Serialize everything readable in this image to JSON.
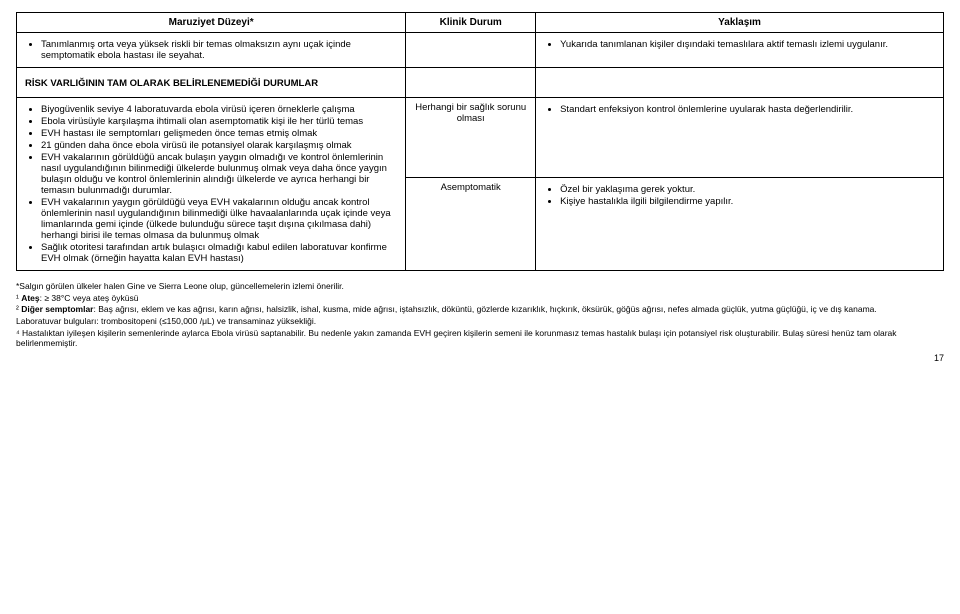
{
  "headers": {
    "c1": "Maruziyet Düzeyi*",
    "c2": "Klinik Durum",
    "c3": "Yaklaşım"
  },
  "row1": {
    "left": "Tanımlanmış orta veya yüksek riskli bir temas olmaksızın aynı uçak içinde  semptomatik ebola hastası ile seyahat.",
    "right": "Yukarıda tanımlanan kişiler dışındaki temaslılara aktif temaslı izlemi uygulanır."
  },
  "section_title": "RİSK VARLIĞININ TAM OLARAK BELİRLENEMEDİĞİ DURUMLAR",
  "bullets1": [
    "Biyogüvenlik seviye 4 laboratuvarda ebola virüsü içeren örneklerle çalışma",
    "Ebola virüsüyle karşılaşma ihtimali olan asemptomatik kişi ile her türlü temas",
    "EVH hastası ile semptomları gelişmeden önce temas etmiş olmak",
    "21 günden daha önce ebola virüsü ile potansiyel olarak karşılaşmış olmak",
    "EVH vakalarının görüldüğü ancak bulaşın yaygın olmadığı ve kontrol önlemlerinin nasıl uygulandığının bilinmediği ülkelerde bulunmuş olmak veya daha önce yaygın bulaşın olduğu ve kontrol önlemlerinin alındığı ülkelerde ve ayrıca herhangi bir temasın bulunmadığı durumlar.",
    "EVH vakalarının yaygın görüldüğü veya EVH vakalarının olduğu ancak kontrol önlemlerinin nasıl uygulandığının bilinmediği ülke havaalanlarında uçak içinde veya limanlarında gemi içinde (ülkede bulunduğu sürece taşıt dışına çıkılmasa dahi) herhangi birisi ile temas olmasa da bulunmuş olmak"
  ],
  "bullets2_lead": "Sağlık otoritesi tarafından artık bulaşıcı olmadığı kabul edilen laboratuvar konfirme EVH olmak (örneğin hayatta kalan EVH hastası)",
  "mid1": "Herhangi bir sağlık sorunu olması",
  "mid2": "Asemptomatik",
  "right1": "Standart enfeksiyon kontrol önlemlerine uyularak hasta değerlendirilir.",
  "right2a": "Özel bir yaklaşıma gerek yoktur.",
  "right2b": "Kişiye hastalıkla ilgili bilgilendirme yapılır.",
  "notes": {
    "n1": "*Salgın görülen ülkeler halen Gine ve Sierra Leone olup, güncellemelerin izlemi önerilir.",
    "n2a": "¹ ",
    "n2b": "Ateş",
    "n2c": ": ≥ 38°C veya ateş öyküsü",
    "n3a": "² ",
    "n3b": "Diğer semptomlar",
    "n3c": ": Baş ağrısı, eklem ve kas ağrısı, karın ağrısı, halsizlik, ishal, kusma, mide ağrısı, iştahsızlık, döküntü, gözlerde kızarıklık, hıçkırık, öksürük, göğüs ağrısı, nefes almada güçlük, yutma güçlüğü, iç ve dış kanama.",
    "n4": "Laboratuvar bulguları: trombositopeni (≤150,000 /μL) ve transaminaz yüksekliği.",
    "n5": "⁴ Hastalıktan iyileşen kişilerin semenlerinde aylarca Ebola virüsü saptanabilir. Bu nedenle yakın zamanda EVH geçiren kişilerin semeni ile korunmasız temas hastalık bulaşı için potansiyel risk oluşturabilir. Bulaş süresi henüz tam olarak belirlenmemiştir."
  },
  "pagenum": "17"
}
